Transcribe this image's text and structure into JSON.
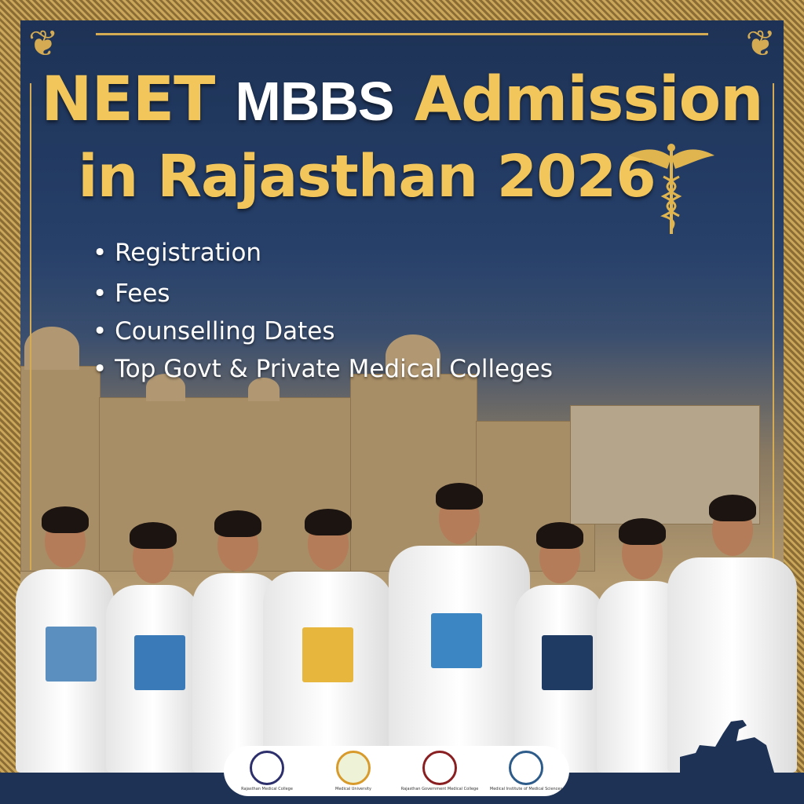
{
  "title": {
    "word1": "NEET",
    "word2": "MBBS",
    "word3": "Admission",
    "line2": "in Rajasthan 2026"
  },
  "points": [
    "Registration",
    "Fees",
    "Counselling Dates",
    "Top Govt & Private Medical Colleges"
  ],
  "logos": [
    {
      "name": "college-seal-1",
      "text": "Rajasthan Medical College"
    },
    {
      "name": "college-seal-2",
      "text": "Medical University"
    },
    {
      "name": "college-seal-3",
      "text": "Rajasthan Government Medical College"
    },
    {
      "name": "college-seal-4",
      "text": "Medical Institute of Medical Sciences"
    }
  ],
  "colors": {
    "navy": "#1d3255",
    "gold": "#f2c65a",
    "border_gold": "#d4ab52",
    "white": "#ffffff"
  },
  "icons": [
    "caduceus-icon",
    "ornamental-corner-icon",
    "camel-silhouette-icon"
  ]
}
